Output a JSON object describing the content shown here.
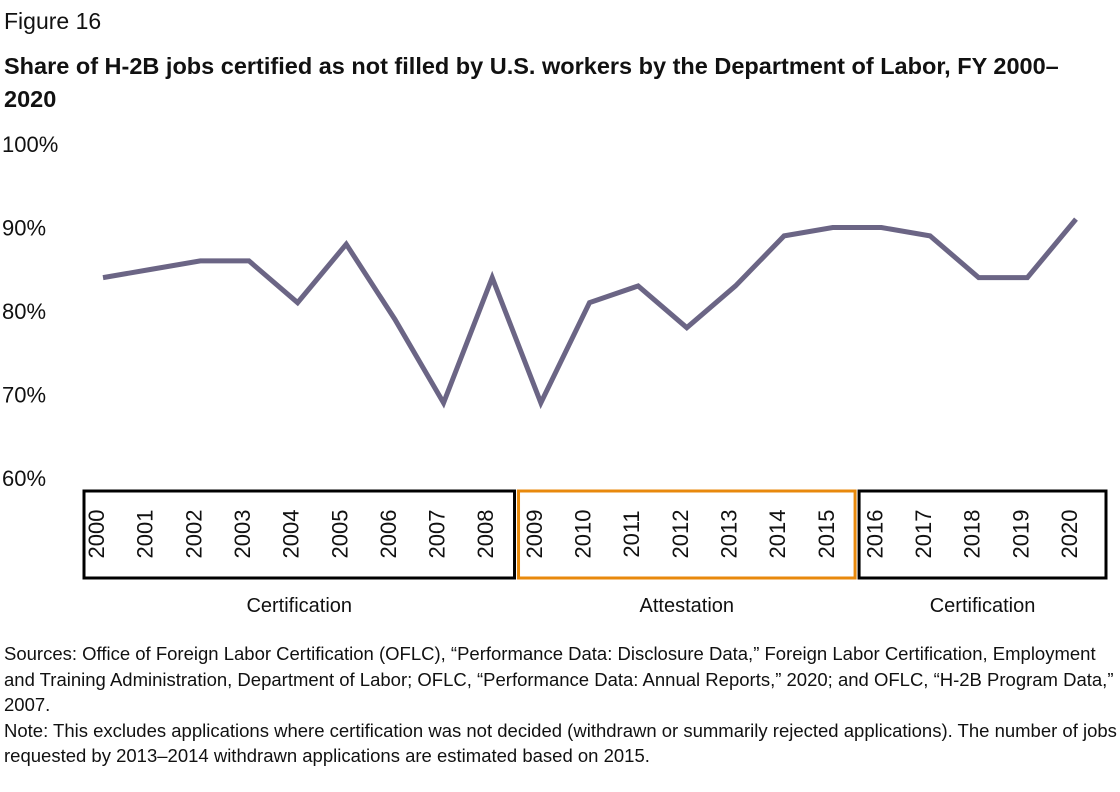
{
  "figure_label": "Figure 16",
  "chart_data": {
    "type": "line",
    "title": "Share of H-2B jobs certified as not filled by U.S. workers by the Department of Labor, FY 2000–2020",
    "xlabel": "",
    "ylabel": "",
    "ylim": [
      60,
      100
    ],
    "yticks": [
      "60%",
      "70%",
      "80%",
      "90%",
      "100%"
    ],
    "ytick_values": [
      60,
      70,
      80,
      90,
      100
    ],
    "grid": false,
    "line_color": "#6b6585",
    "x": [
      "2000",
      "2001",
      "2002",
      "2003",
      "2004",
      "2005",
      "2006",
      "2007",
      "2008",
      "2009",
      "2010",
      "2011",
      "2012",
      "2013",
      "2014",
      "2015",
      "2016",
      "2017",
      "2018",
      "2019",
      "2020"
    ],
    "values": [
      84,
      85,
      86,
      86,
      81,
      88,
      79,
      69,
      84,
      69,
      81,
      83,
      78,
      83,
      89,
      90,
      90,
      89,
      84,
      84,
      91
    ],
    "periods": [
      {
        "label": "Certification",
        "from": "2000",
        "to": "2008",
        "color": "#000000"
      },
      {
        "label": "Attestation",
        "from": "2009",
        "to": "2015",
        "color": "#e8890c"
      },
      {
        "label": "Certification",
        "from": "2016",
        "to": "2020",
        "color": "#000000"
      }
    ]
  },
  "notes": {
    "sources": "Sources: Office of Foreign Labor Certification (OFLC), “Performance Data: Disclosure Data,” Foreign Labor Certification, Employment and Training Administration, Department of Labor; OFLC, “Performance Data: Annual Reports,” 2020; and OFLC, “H-2B Program Data,” 2007.",
    "note": "Note: This excludes applications where certification was not decided (withdrawn or summarily rejected applications). The number of jobs requested by 2013–2014 withdrawn applications are estimated based on 2015."
  }
}
